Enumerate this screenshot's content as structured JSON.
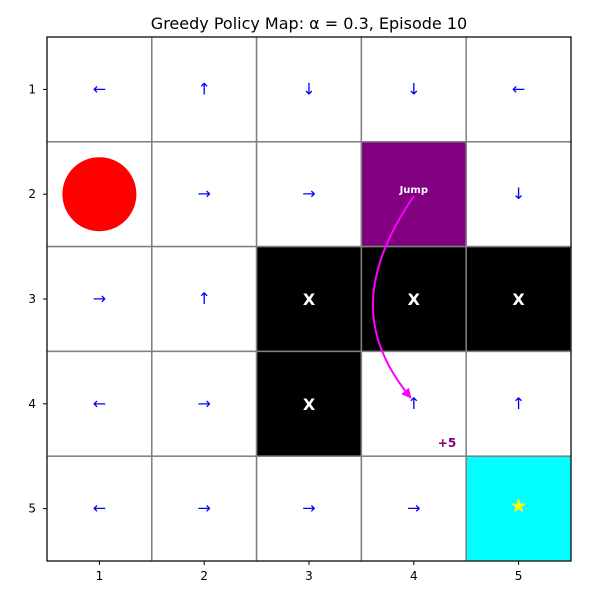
{
  "title": "Greedy Policy Map: α = 0.3, Episode 10",
  "x_ticks": [
    "1",
    "2",
    "3",
    "4",
    "5"
  ],
  "y_ticks": [
    "1",
    "2",
    "3",
    "4",
    "5"
  ],
  "colors": {
    "grid_line": "#808080",
    "arrow": "#0000ff",
    "wall": "#000000",
    "wall_text": "#ffffff",
    "jump_cell": "#800080",
    "jump_text": "#ffffff",
    "jump_arrow": "#ff00ff",
    "goal_cell": "#00ffff",
    "goal_star": "#ffff00",
    "agent": "#ff0000",
    "reward_text": "#800080"
  },
  "grid": [
    [
      {
        "type": "arrow",
        "symbol": "←"
      },
      {
        "type": "arrow",
        "symbol": "↑"
      },
      {
        "type": "arrow",
        "symbol": "↓"
      },
      {
        "type": "arrow",
        "symbol": "↓"
      },
      {
        "type": "arrow",
        "symbol": "←"
      }
    ],
    [
      {
        "type": "agent"
      },
      {
        "type": "arrow",
        "symbol": "→"
      },
      {
        "type": "arrow",
        "symbol": "→"
      },
      {
        "type": "jump",
        "label": "Jump"
      },
      {
        "type": "arrow",
        "symbol": "↓"
      }
    ],
    [
      {
        "type": "arrow",
        "symbol": "→"
      },
      {
        "type": "arrow",
        "symbol": "↑"
      },
      {
        "type": "wall",
        "label": "X"
      },
      {
        "type": "wall",
        "label": "X"
      },
      {
        "type": "wall",
        "label": "X"
      }
    ],
    [
      {
        "type": "arrow",
        "symbol": "←"
      },
      {
        "type": "arrow",
        "symbol": "→"
      },
      {
        "type": "wall",
        "label": "X"
      },
      {
        "type": "arrow",
        "symbol": "↑"
      },
      {
        "type": "arrow",
        "symbol": "↑"
      }
    ],
    [
      {
        "type": "arrow",
        "symbol": "←"
      },
      {
        "type": "arrow",
        "symbol": "→"
      },
      {
        "type": "arrow",
        "symbol": "→"
      },
      {
        "type": "arrow",
        "symbol": "→"
      },
      {
        "type": "goal",
        "symbol": "★"
      }
    ]
  ],
  "jump": {
    "from": {
      "row": 2,
      "col": 4
    },
    "to": {
      "row": 4,
      "col": 4
    },
    "reward_label": "+5"
  }
}
